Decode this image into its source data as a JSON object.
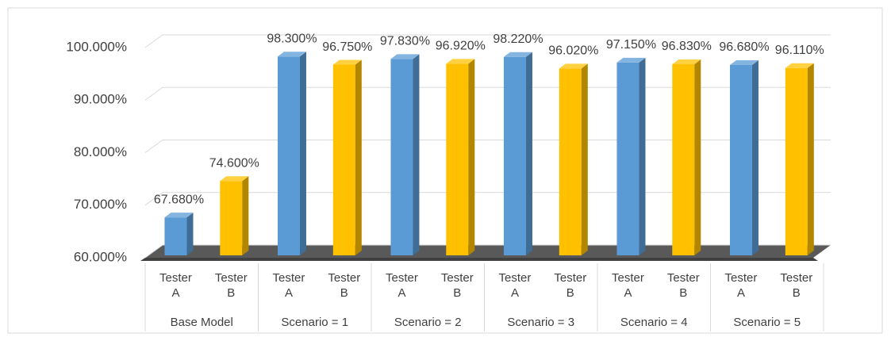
{
  "chart_data": {
    "type": "bar3d",
    "groups": [
      "Base Model",
      "Scenario = 1",
      "Scenario = 2",
      "Scenario = 3",
      "Scenario = 4",
      "Scenario = 5"
    ],
    "series": [
      {
        "name": "Tester A",
        "color": "#5b9bd5",
        "values": [
          67.68,
          98.3,
          97.83,
          98.22,
          97.15,
          96.68
        ],
        "value_labels": [
          "67.680%",
          "98.300%",
          "97.830%",
          "98.220%",
          "97.150%",
          "96.680%"
        ]
      },
      {
        "name": "Tester B",
        "color": "#ffc000",
        "values": [
          74.6,
          96.75,
          96.92,
          96.02,
          96.83,
          96.11
        ],
        "value_labels": [
          "74.600%",
          "96.750%",
          "96.920%",
          "96.020%",
          "96.830%",
          "96.110%"
        ]
      }
    ],
    "ylim": [
      60,
      100
    ],
    "yticks": [
      {
        "value": 60,
        "label": "60.000%"
      },
      {
        "value": 70,
        "label": "70.000%"
      },
      {
        "value": 80,
        "label": "80.000%"
      },
      {
        "value": 90,
        "label": "90.000%"
      },
      {
        "value": 100,
        "label": "100.000%"
      }
    ],
    "grid": true
  }
}
